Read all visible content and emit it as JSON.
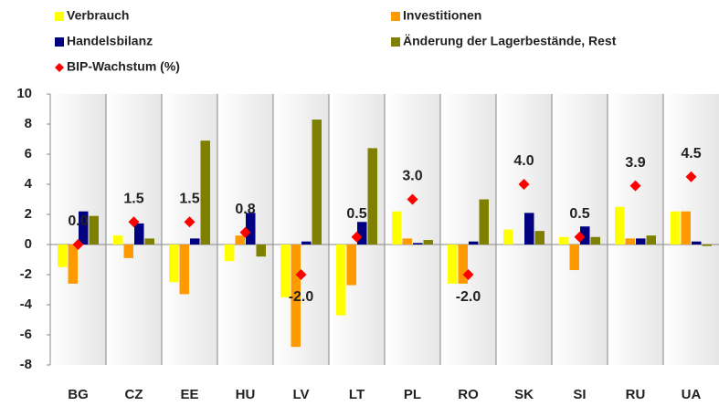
{
  "chart_data": {
    "type": "bar",
    "categories": [
      "BG",
      "CZ",
      "EE",
      "HU",
      "LV",
      "LT",
      "PL",
      "RO",
      "SK",
      "SI",
      "RU",
      "UA"
    ],
    "series": [
      {
        "name": "Verbrauch",
        "color": "#ffff00",
        "values": [
          -1.5,
          0.6,
          -2.5,
          -1.1,
          -3.5,
          -4.7,
          2.2,
          -2.6,
          1.0,
          0.5,
          2.5,
          2.2
        ]
      },
      {
        "name": "Investitionen",
        "color": "#ff9900",
        "values": [
          -2.6,
          -0.9,
          -3.3,
          0.6,
          -6.8,
          -2.7,
          0.4,
          -2.6,
          0,
          -1.7,
          0.4,
          2.2
        ]
      },
      {
        "name": "Handelsbilanz",
        "color": "#000080",
        "values": [
          2.2,
          1.4,
          0.4,
          2.1,
          0.2,
          1.5,
          0.1,
          0.2,
          2.1,
          1.2,
          0.4,
          0.2
        ]
      },
      {
        "name": "Änderung der Lagerbestände, Rest",
        "color": "#808000",
        "values": [
          1.9,
          0.4,
          6.9,
          -0.8,
          8.3,
          6.4,
          0.3,
          3.0,
          0.9,
          0.5,
          0.6,
          -0.1
        ]
      },
      {
        "name": "BIP-Wachstum (%)",
        "color": "#ff0000",
        "marker": "diamond",
        "values": [
          0.0,
          1.5,
          1.5,
          0.8,
          -2.0,
          0.5,
          3.0,
          -2.0,
          4.0,
          0.5,
          3.9,
          4.5
        ],
        "value_labels": [
          "0.0",
          "1.5",
          "1.5",
          "0.8",
          "-2.0",
          "0.5",
          "3.0",
          "-2.0",
          "4.0",
          "0.5",
          "3.9",
          "4.5"
        ]
      }
    ],
    "ylim": [
      -8,
      10
    ],
    "yticks": [
      -8,
      -6,
      -4,
      -2,
      0,
      2,
      4,
      6,
      8,
      10
    ],
    "grid": false
  }
}
